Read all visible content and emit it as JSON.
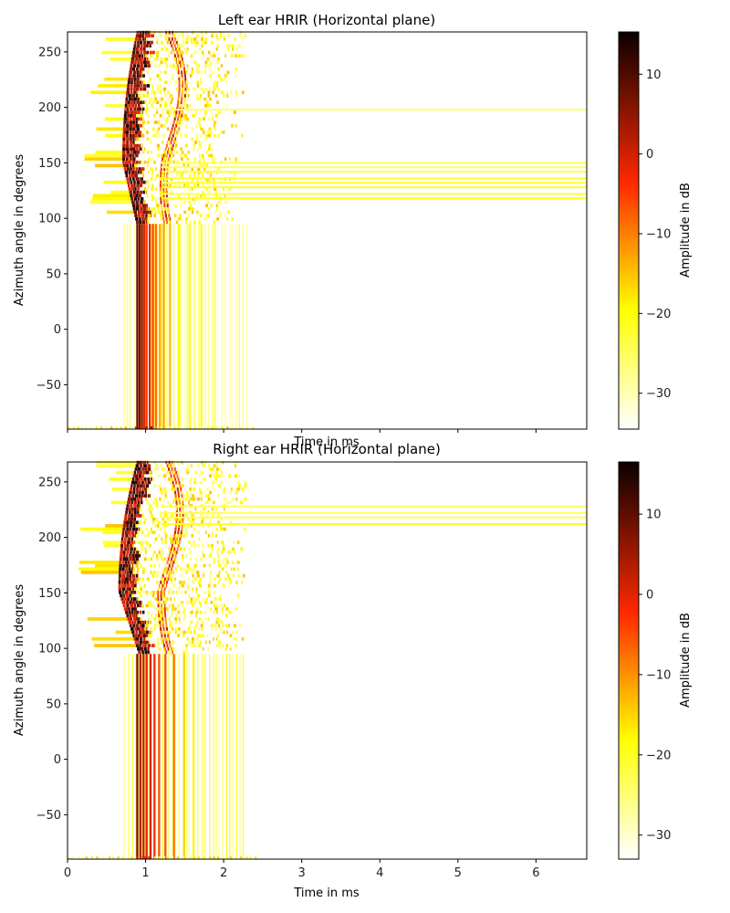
{
  "chart_data": [
    {
      "type": "heatmap",
      "title": "Left ear HRIR (Horizontal plane)",
      "xlabel": "Time in ms",
      "ylabel": "Azimuth angle in degrees",
      "xlim": [
        0,
        6.65
      ],
      "ylim": [
        -90,
        268
      ],
      "xticks": [
        0,
        1,
        2,
        3,
        4,
        5,
        6
      ],
      "show_x_tick_labels": false,
      "yticks": [
        -50,
        0,
        50,
        100,
        150,
        200,
        250
      ],
      "colorbar": {
        "label": "Amplitude in dB",
        "colormap": "hot_r",
        "range": [
          -34.5,
          15.3
        ],
        "ticks": [
          -30,
          -20,
          -10,
          0,
          10
        ]
      },
      "features": {
        "front_onset_ms": 0.88,
        "front_end_ms": 2.3,
        "front_lines_ms": [
          0.88,
          0.91,
          0.94,
          0.97,
          1.0,
          1.04,
          1.08,
          1.12,
          1.17,
          1.22,
          1.3,
          1.42,
          1.55,
          1.7
        ],
        "front_az_range": [
          -90,
          95
        ],
        "rear_onset_at_100deg_ms": 0.86,
        "rear_onset_at_150deg_ms": 0.7,
        "rear_onset_at_265deg_ms": 0.88,
        "long_tail_azimuths": [
          118,
          122,
          128,
          132,
          136,
          142,
          146,
          150,
          198
        ],
        "grid": false
      }
    },
    {
      "type": "heatmap",
      "title": "Right ear HRIR (Horizontal plane)",
      "xlabel": "Time in ms",
      "ylabel": "Azimuth angle in degrees",
      "xlim": [
        0,
        6.65
      ],
      "ylim": [
        -90,
        268
      ],
      "xticks": [
        0,
        1,
        2,
        3,
        4,
        5,
        6
      ],
      "show_x_tick_labels": true,
      "yticks": [
        -50,
        0,
        50,
        100,
        150,
        200,
        250
      ],
      "colorbar": {
        "label": "Amplitude in dB",
        "colormap": "hot_r",
        "range": [
          -33,
          16.5
        ],
        "ticks": [
          -30,
          -20,
          -10,
          0,
          10
        ]
      },
      "features": {
        "front_onset_ms": 0.88,
        "front_end_ms": 2.25,
        "front_lines_ms": [
          0.88,
          0.92,
          0.96,
          1.0,
          1.05,
          1.1,
          1.16,
          1.24,
          1.35,
          1.48,
          1.6
        ],
        "front_az_range": [
          -90,
          95
        ],
        "rear_onset_at_100deg_ms": 0.88,
        "rear_onset_at_150deg_ms": 0.65,
        "rear_onset_at_265deg_ms": 0.88,
        "long_tail_azimuths": [
          212,
          218,
          222,
          228
        ],
        "grid": false
      }
    }
  ]
}
